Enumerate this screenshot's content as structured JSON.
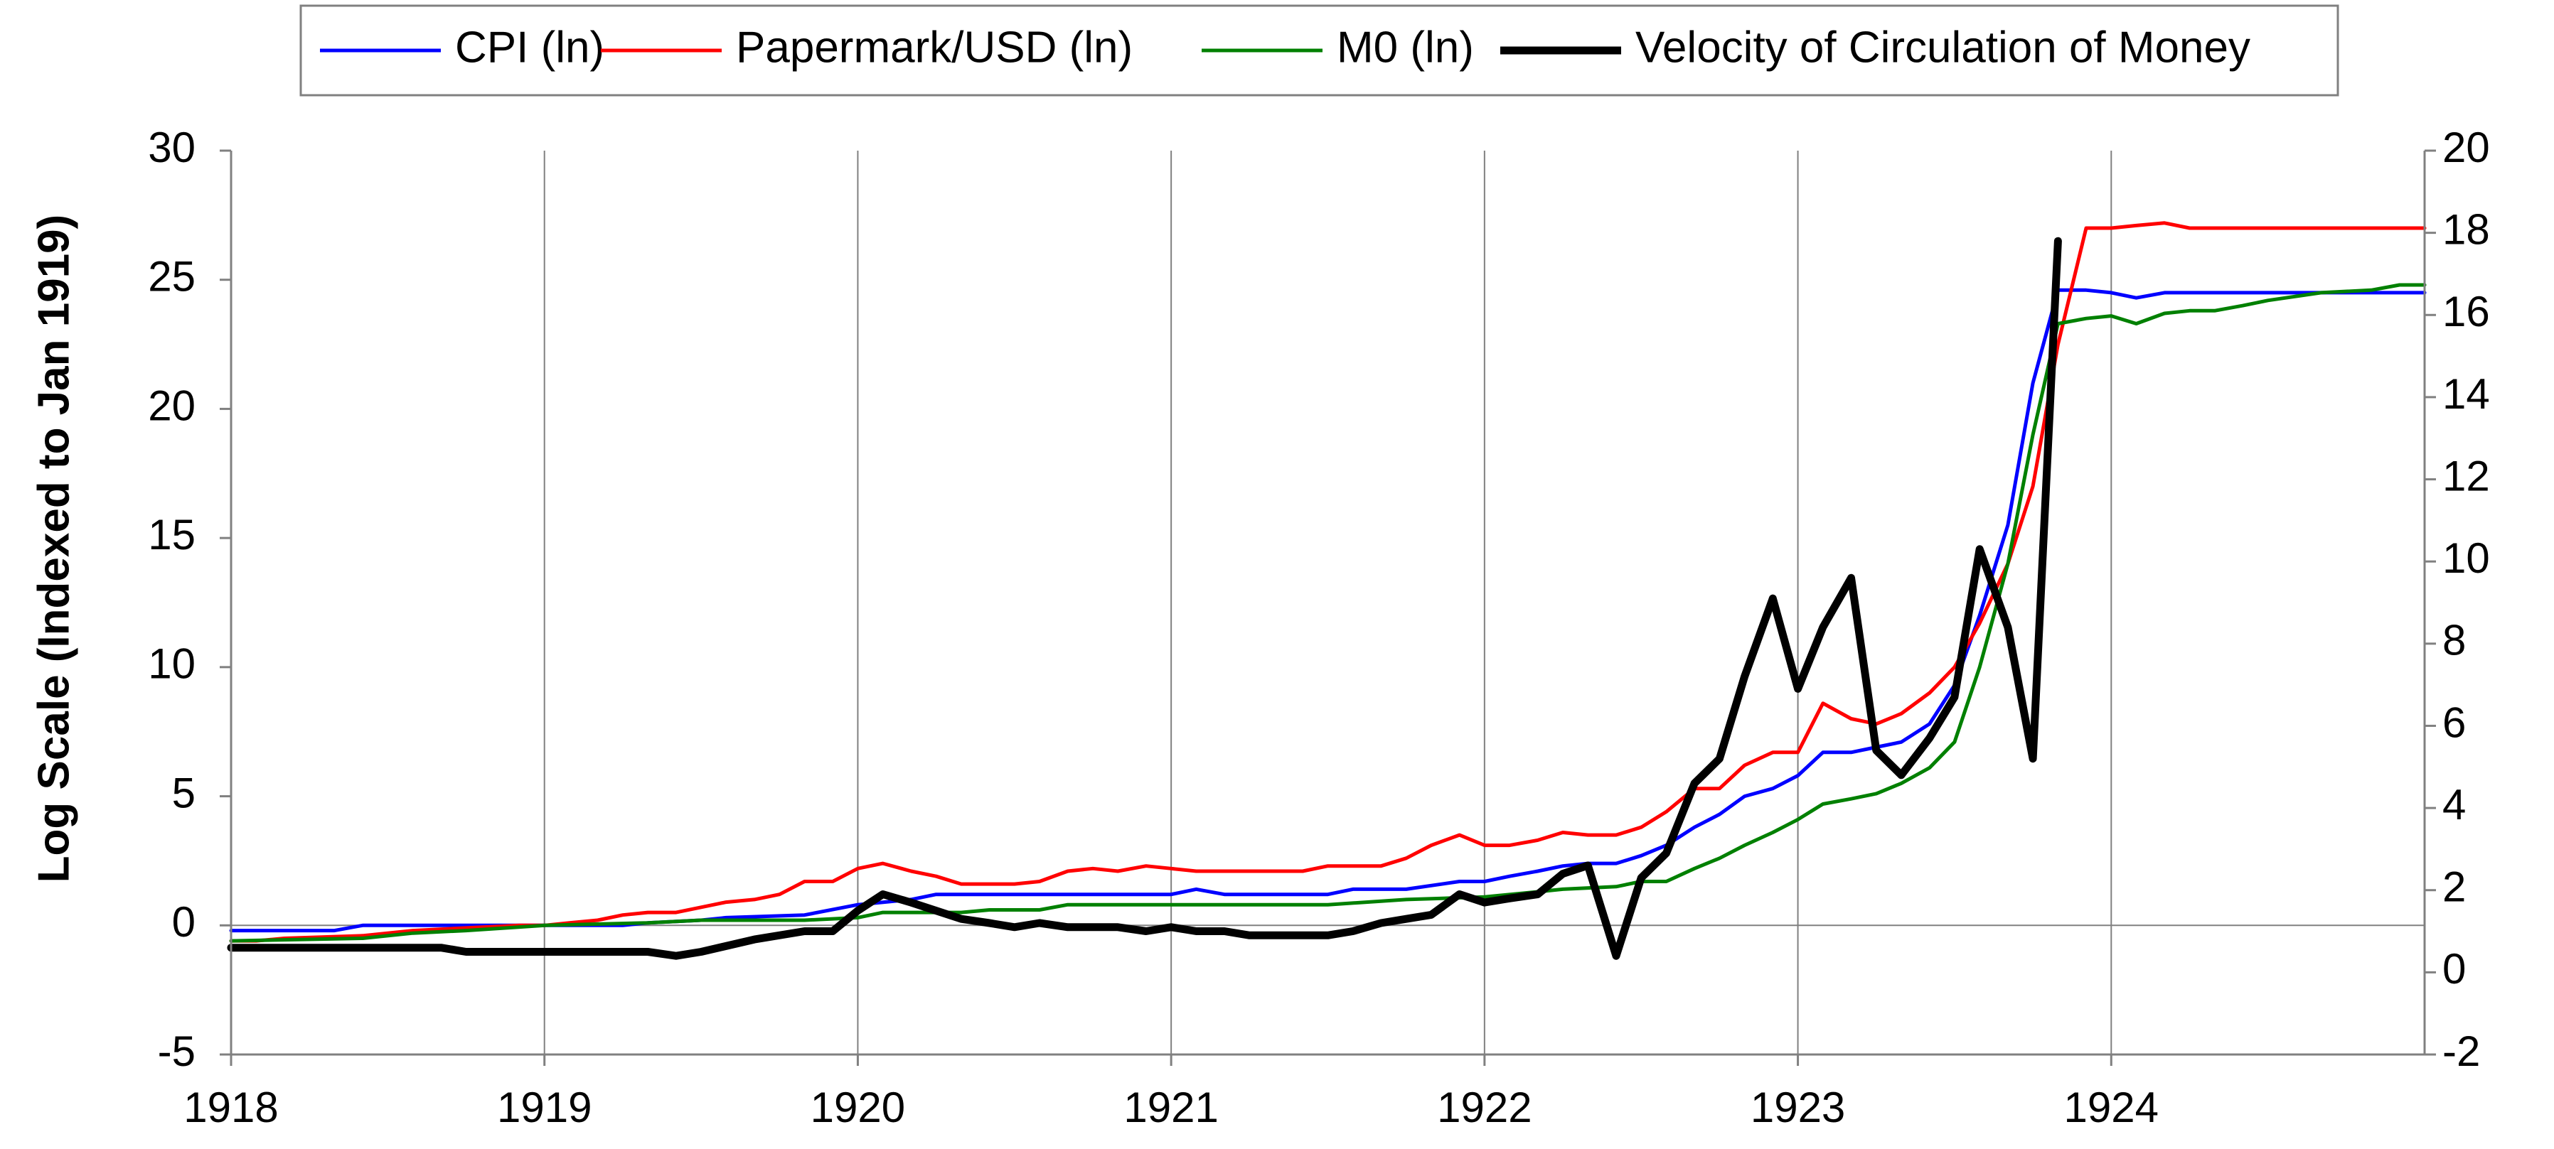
{
  "chart_data": {
    "type": "line",
    "title": "",
    "xlabel": "",
    "ylabel": "Log Scale (Indexed to Jan 1919)",
    "y2label": "",
    "xlim": [
      1918,
      1925
    ],
    "ylim": [
      -5,
      30
    ],
    "y2lim": [
      -2,
      20
    ],
    "x_ticks": [
      1918,
      1919,
      1920,
      1921,
      1922,
      1923,
      1924
    ],
    "x_tick_labels": [
      "1918",
      "1919",
      "1920",
      "1921",
      "1922",
      "1923",
      "1924"
    ],
    "y_ticks": [
      -5,
      0,
      5,
      10,
      15,
      20,
      25,
      30
    ],
    "y_tick_labels": [
      "-5",
      "0",
      "5",
      "10",
      "15",
      "20",
      "25",
      "30"
    ],
    "y2_ticks": [
      -2,
      0,
      2,
      4,
      6,
      8,
      10,
      12,
      14,
      16,
      18,
      20
    ],
    "y2_tick_labels": [
      "-2",
      "0",
      "2",
      "4",
      "6",
      "8",
      "10",
      "12",
      "14",
      "16",
      "18",
      "20"
    ],
    "grid": "vertical at years, horizontal at 0",
    "legend_position": "top-center",
    "series": [
      {
        "name": "CPI (ln)",
        "color": "#0000ff",
        "axis": "left",
        "line_width": "thin",
        "points": [
          [
            1918.0,
            -0.2
          ],
          [
            1918.33,
            -0.2
          ],
          [
            1918.42,
            0.0
          ],
          [
            1918.75,
            0.0
          ],
          [
            1919.0,
            0.0
          ],
          [
            1919.25,
            0.0
          ],
          [
            1919.33,
            0.1
          ],
          [
            1919.5,
            0.2
          ],
          [
            1919.58,
            0.3
          ],
          [
            1919.83,
            0.4
          ],
          [
            1920.0,
            0.8
          ],
          [
            1920.17,
            1.0
          ],
          [
            1920.25,
            1.2
          ],
          [
            1920.5,
            1.2
          ],
          [
            1921.0,
            1.2
          ],
          [
            1921.08,
            1.4
          ],
          [
            1921.17,
            1.2
          ],
          [
            1921.5,
            1.2
          ],
          [
            1921.58,
            1.4
          ],
          [
            1921.75,
            1.4
          ],
          [
            1921.92,
            1.7
          ],
          [
            1922.0,
            1.7
          ],
          [
            1922.08,
            1.9
          ],
          [
            1922.17,
            2.1
          ],
          [
            1922.25,
            2.3
          ],
          [
            1922.33,
            2.4
          ],
          [
            1922.42,
            2.4
          ],
          [
            1922.5,
            2.7
          ],
          [
            1922.58,
            3.1
          ],
          [
            1922.67,
            3.8
          ],
          [
            1922.75,
            4.3
          ],
          [
            1922.83,
            5.0
          ],
          [
            1922.92,
            5.3
          ],
          [
            1923.0,
            5.8
          ],
          [
            1923.08,
            6.7
          ],
          [
            1923.17,
            6.7
          ],
          [
            1923.25,
            6.9
          ],
          [
            1923.33,
            7.1
          ],
          [
            1923.42,
            7.8
          ],
          [
            1923.5,
            9.3
          ],
          [
            1923.58,
            12.0
          ],
          [
            1923.67,
            15.5
          ],
          [
            1923.75,
            21.0
          ],
          [
            1923.83,
            24.6
          ],
          [
            1923.92,
            24.6
          ],
          [
            1924.0,
            24.5
          ],
          [
            1924.08,
            24.3
          ],
          [
            1924.17,
            24.5
          ],
          [
            1924.5,
            24.5
          ],
          [
            1925.0,
            24.5
          ]
        ]
      },
      {
        "name": "Papermark/USD (ln)",
        "color": "#ff0000",
        "axis": "left",
        "line_width": "thin",
        "points": [
          [
            1918.0,
            -0.6
          ],
          [
            1918.08,
            -0.6
          ],
          [
            1918.17,
            -0.5
          ],
          [
            1918.42,
            -0.4
          ],
          [
            1918.58,
            -0.2
          ],
          [
            1918.75,
            -0.1
          ],
          [
            1918.92,
            0.0
          ],
          [
            1919.0,
            0.0
          ],
          [
            1919.08,
            0.1
          ],
          [
            1919.17,
            0.2
          ],
          [
            1919.25,
            0.4
          ],
          [
            1919.33,
            0.5
          ],
          [
            1919.42,
            0.5
          ],
          [
            1919.5,
            0.7
          ],
          [
            1919.58,
            0.9
          ],
          [
            1919.67,
            1.0
          ],
          [
            1919.75,
            1.2
          ],
          [
            1919.83,
            1.7
          ],
          [
            1919.92,
            1.7
          ],
          [
            1920.0,
            2.2
          ],
          [
            1920.08,
            2.4
          ],
          [
            1920.17,
            2.1
          ],
          [
            1920.25,
            1.9
          ],
          [
            1920.33,
            1.6
          ],
          [
            1920.5,
            1.6
          ],
          [
            1920.58,
            1.7
          ],
          [
            1920.67,
            2.1
          ],
          [
            1920.75,
            2.2
          ],
          [
            1920.83,
            2.1
          ],
          [
            1920.92,
            2.3
          ],
          [
            1921.0,
            2.2
          ],
          [
            1921.08,
            2.1
          ],
          [
            1921.42,
            2.1
          ],
          [
            1921.5,
            2.3
          ],
          [
            1921.67,
            2.3
          ],
          [
            1921.75,
            2.6
          ],
          [
            1921.83,
            3.1
          ],
          [
            1921.92,
            3.5
          ],
          [
            1922.0,
            3.1
          ],
          [
            1922.08,
            3.1
          ],
          [
            1922.17,
            3.3
          ],
          [
            1922.25,
            3.6
          ],
          [
            1922.33,
            3.5
          ],
          [
            1922.42,
            3.5
          ],
          [
            1922.5,
            3.8
          ],
          [
            1922.58,
            4.4
          ],
          [
            1922.67,
            5.3
          ],
          [
            1922.75,
            5.3
          ],
          [
            1922.83,
            6.2
          ],
          [
            1922.92,
            6.7
          ],
          [
            1923.0,
            6.7
          ],
          [
            1923.08,
            8.6
          ],
          [
            1923.17,
            8.0
          ],
          [
            1923.25,
            7.8
          ],
          [
            1923.33,
            8.2
          ],
          [
            1923.42,
            9.0
          ],
          [
            1923.5,
            10.0
          ],
          [
            1923.58,
            11.7
          ],
          [
            1923.67,
            14.0
          ],
          [
            1923.75,
            17.0
          ],
          [
            1923.83,
            22.5
          ],
          [
            1923.92,
            27.0
          ],
          [
            1924.0,
            27.0
          ],
          [
            1924.08,
            27.1
          ],
          [
            1924.17,
            27.2
          ],
          [
            1924.25,
            27.0
          ],
          [
            1924.5,
            27.0
          ],
          [
            1925.0,
            27.0
          ]
        ]
      },
      {
        "name": "M0 (ln)",
        "color": "#008000",
        "axis": "left",
        "line_width": "thin",
        "points": [
          [
            1918.0,
            -0.6
          ],
          [
            1918.42,
            -0.5
          ],
          [
            1918.58,
            -0.3
          ],
          [
            1918.75,
            -0.2
          ],
          [
            1919.0,
            0.0
          ],
          [
            1919.33,
            0.1
          ],
          [
            1919.5,
            0.2
          ],
          [
            1919.83,
            0.2
          ],
          [
            1920.0,
            0.3
          ],
          [
            1920.08,
            0.5
          ],
          [
            1920.33,
            0.5
          ],
          [
            1920.42,
            0.6
          ],
          [
            1920.58,
            0.6
          ],
          [
            1920.67,
            0.8
          ],
          [
            1921.5,
            0.8
          ],
          [
            1921.75,
            1.0
          ],
          [
            1922.0,
            1.1
          ],
          [
            1922.17,
            1.3
          ],
          [
            1922.25,
            1.4
          ],
          [
            1922.42,
            1.5
          ],
          [
            1922.5,
            1.7
          ],
          [
            1922.58,
            1.7
          ],
          [
            1922.67,
            2.2
          ],
          [
            1922.75,
            2.6
          ],
          [
            1922.83,
            3.1
          ],
          [
            1922.92,
            3.6
          ],
          [
            1923.0,
            4.1
          ],
          [
            1923.08,
            4.7
          ],
          [
            1923.17,
            4.9
          ],
          [
            1923.25,
            5.1
          ],
          [
            1923.33,
            5.5
          ],
          [
            1923.42,
            6.1
          ],
          [
            1923.5,
            7.1
          ],
          [
            1923.58,
            10.0
          ],
          [
            1923.67,
            14.0
          ],
          [
            1923.75,
            19.0
          ],
          [
            1923.83,
            23.3
          ],
          [
            1923.92,
            23.5
          ],
          [
            1924.0,
            23.6
          ],
          [
            1924.08,
            23.3
          ],
          [
            1924.17,
            23.7
          ],
          [
            1924.25,
            23.8
          ],
          [
            1924.33,
            23.8
          ],
          [
            1924.42,
            24.0
          ],
          [
            1924.5,
            24.2
          ],
          [
            1924.67,
            24.5
          ],
          [
            1924.83,
            24.6
          ],
          [
            1924.92,
            24.8
          ],
          [
            1925.0,
            24.8
          ]
        ]
      },
      {
        "name": "Velocity of Circulation of Money",
        "color": "#000000",
        "axis": "right",
        "line_width": "thick",
        "points": [
          [
            1918.0,
            0.6
          ],
          [
            1918.67,
            0.6
          ],
          [
            1918.75,
            0.5
          ],
          [
            1919.0,
            0.5
          ],
          [
            1919.33,
            0.5
          ],
          [
            1919.42,
            0.4
          ],
          [
            1919.5,
            0.5
          ],
          [
            1919.67,
            0.8
          ],
          [
            1919.83,
            1.0
          ],
          [
            1919.92,
            1.0
          ],
          [
            1920.0,
            1.5
          ],
          [
            1920.08,
            1.9
          ],
          [
            1920.17,
            1.7
          ],
          [
            1920.25,
            1.5
          ],
          [
            1920.33,
            1.3
          ],
          [
            1920.42,
            1.2
          ],
          [
            1920.5,
            1.1
          ],
          [
            1920.58,
            1.2
          ],
          [
            1920.67,
            1.1
          ],
          [
            1920.83,
            1.1
          ],
          [
            1920.92,
            1.0
          ],
          [
            1921.0,
            1.1
          ],
          [
            1921.08,
            1.0
          ],
          [
            1921.17,
            1.0
          ],
          [
            1921.25,
            0.9
          ],
          [
            1921.42,
            0.9
          ],
          [
            1921.5,
            0.9
          ],
          [
            1921.58,
            1.0
          ],
          [
            1921.67,
            1.2
          ],
          [
            1921.75,
            1.3
          ],
          [
            1921.83,
            1.4
          ],
          [
            1921.92,
            1.9
          ],
          [
            1922.0,
            1.7
          ],
          [
            1922.08,
            1.8
          ],
          [
            1922.17,
            1.9
          ],
          [
            1922.25,
            2.4
          ],
          [
            1922.33,
            2.6
          ],
          [
            1922.42,
            0.4
          ],
          [
            1922.5,
            2.3
          ],
          [
            1922.58,
            2.9
          ],
          [
            1922.67,
            4.6
          ],
          [
            1922.75,
            5.2
          ],
          [
            1922.83,
            7.2
          ],
          [
            1922.92,
            9.1
          ],
          [
            1923.0,
            6.9
          ],
          [
            1923.08,
            8.4
          ],
          [
            1923.17,
            9.6
          ],
          [
            1923.25,
            5.4
          ],
          [
            1923.33,
            4.8
          ],
          [
            1923.42,
            5.7
          ],
          [
            1923.5,
            6.7
          ],
          [
            1923.58,
            10.3
          ],
          [
            1923.67,
            8.4
          ],
          [
            1923.75,
            5.2
          ],
          [
            1923.83,
            17.8
          ]
        ]
      }
    ]
  }
}
